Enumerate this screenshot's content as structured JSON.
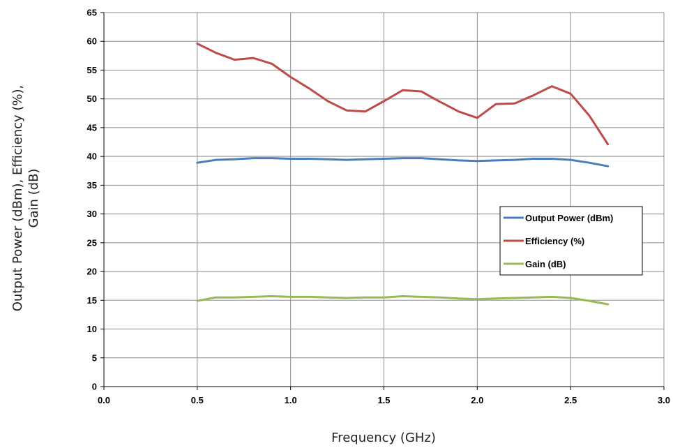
{
  "chart_data": {
    "type": "line",
    "title": "",
    "xlabel": "Frequency (GHz)",
    "ylabel": [
      "Output Power (dBm), Efficiency (%),",
      "Gain (dB)"
    ],
    "xlim": [
      0.0,
      3.0
    ],
    "ylim": [
      0,
      65
    ],
    "x_ticks": [
      "0.0",
      "0.5",
      "1.0",
      "1.5",
      "2.0",
      "2.5",
      "3.0"
    ],
    "y_ticks": [
      "0",
      "5",
      "10",
      "15",
      "20",
      "25",
      "30",
      "35",
      "40",
      "45",
      "50",
      "55",
      "60",
      "65"
    ],
    "grid": true,
    "legend_position": "right-middle",
    "x": [
      0.5,
      0.6,
      0.7,
      0.8,
      0.9,
      1.0,
      1.1,
      1.2,
      1.3,
      1.4,
      1.5,
      1.6,
      1.7,
      1.8,
      1.9,
      2.0,
      2.1,
      2.2,
      2.3,
      2.4,
      2.5,
      2.6,
      2.7
    ],
    "series": [
      {
        "name": "Output Power (dBm)",
        "color": "#4a7ebb",
        "values": [
          38.9,
          39.4,
          39.5,
          39.7,
          39.7,
          39.6,
          39.6,
          39.5,
          39.4,
          39.5,
          39.6,
          39.7,
          39.7,
          39.5,
          39.3,
          39.2,
          39.3,
          39.4,
          39.6,
          39.6,
          39.4,
          38.9,
          38.3
        ]
      },
      {
        "name": "Efficiency (%)",
        "color": "#be4b48",
        "values": [
          59.6,
          58.0,
          56.8,
          57.1,
          56.1,
          53.8,
          51.8,
          49.6,
          48.0,
          47.8,
          49.6,
          51.5,
          51.3,
          49.5,
          47.8,
          46.7,
          49.1,
          49.2,
          50.6,
          52.2,
          50.9,
          47.1,
          42.1
        ]
      },
      {
        "name": "Gain (dB)",
        "color": "#98b954",
        "values": [
          14.9,
          15.5,
          15.5,
          15.6,
          15.7,
          15.6,
          15.6,
          15.5,
          15.4,
          15.5,
          15.5,
          15.7,
          15.6,
          15.5,
          15.3,
          15.2,
          15.3,
          15.4,
          15.5,
          15.6,
          15.4,
          14.9,
          14.3
        ]
      }
    ]
  }
}
